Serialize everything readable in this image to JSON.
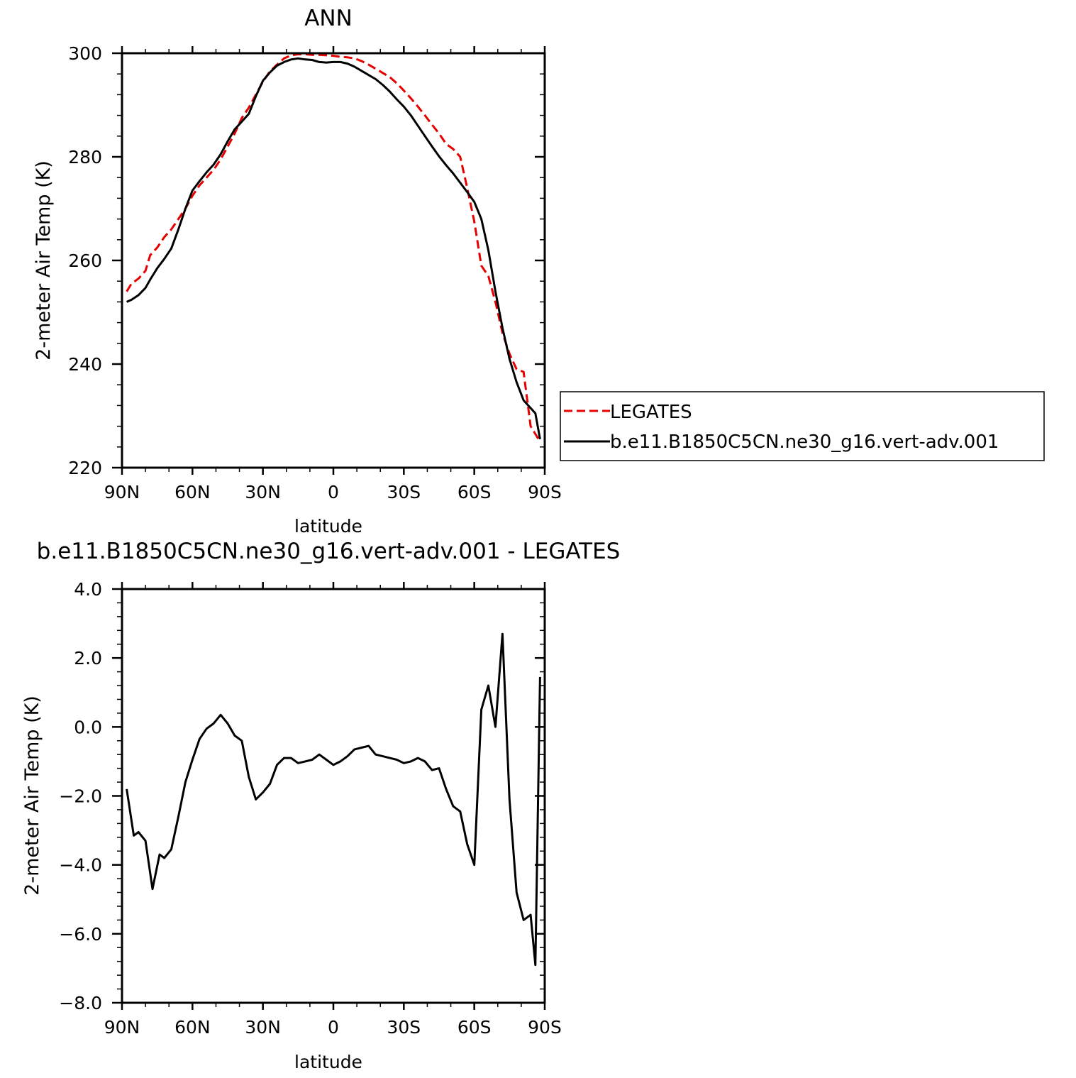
{
  "chart_data": [
    {
      "type": "line",
      "title": "ANN",
      "xlabel": "latitude",
      "ylabel": "2-meter Air Temp (K)",
      "xlim": [
        90,
        -90
      ],
      "ylim": [
        220,
        300
      ],
      "xticks": [
        90,
        60,
        30,
        0,
        -30,
        -60,
        -90
      ],
      "xtick_labels": [
        "90N",
        "60N",
        "30N",
        "0",
        "30S",
        "60S",
        "90S"
      ],
      "yticks": [
        220,
        240,
        260,
        280,
        300
      ],
      "ytick_labels": [
        "220",
        "240",
        "260",
        "280",
        "300"
      ],
      "grid": false,
      "legend": "right",
      "series": [
        {
          "name": "LEGATES",
          "color": "#e60000",
          "dash": "dashed",
          "x": [
            88,
            86,
            83,
            80,
            78,
            75,
            72,
            69,
            66,
            63,
            60,
            57,
            54,
            51,
            48,
            45,
            42,
            39,
            36,
            33,
            30,
            27,
            24,
            21,
            18,
            15,
            12,
            9,
            6,
            3,
            0,
            -3,
            -6,
            -9,
            -12,
            -15,
            -18,
            -21,
            -24,
            -27,
            -30,
            -33,
            -36,
            -39,
            -42,
            -45,
            -48,
            -51,
            -54,
            -57,
            -60,
            -63,
            -66,
            -69,
            -72,
            -75,
            -78,
            -81,
            -84,
            -86,
            -88
          ],
          "y": [
            254,
            255.5,
            256.5,
            258,
            261,
            262.5,
            264.5,
            266,
            268,
            270,
            272.5,
            274.5,
            276,
            277.5,
            279.5,
            282,
            284.5,
            287.5,
            289.5,
            292,
            294.5,
            296.5,
            297.8,
            299,
            299.6,
            299.8,
            299.8,
            299.7,
            299.7,
            299.6,
            299.5,
            299.3,
            299.2,
            299,
            298.5,
            297.8,
            297,
            296.2,
            295.4,
            294.2,
            292.8,
            291.3,
            289.7,
            288,
            286.2,
            284.5,
            282.5,
            281.5,
            280,
            274,
            267.5,
            259,
            257,
            252,
            246,
            242,
            239,
            238.5,
            228,
            226.5,
            225
          ]
        },
        {
          "name": "b.e11.B1850C5CN.ne30_g16.vert-adv.001",
          "color": "#000000",
          "dash": "solid",
          "x": [
            88,
            86,
            83,
            80,
            78,
            75,
            72,
            69,
            66,
            63,
            60,
            57,
            54,
            51,
            48,
            45,
            42,
            39,
            36,
            33,
            30,
            27,
            24,
            21,
            18,
            15,
            12,
            9,
            6,
            3,
            0,
            -3,
            -6,
            -9,
            -12,
            -15,
            -18,
            -21,
            -24,
            -27,
            -30,
            -33,
            -36,
            -39,
            -42,
            -45,
            -48,
            -51,
            -54,
            -57,
            -60,
            -63,
            -66,
            -69,
            -72,
            -75,
            -78,
            -81,
            -84,
            -86,
            -88
          ],
          "y": [
            252,
            252.4,
            253.3,
            254.7,
            256.3,
            258.5,
            260.3,
            262.3,
            266,
            270,
            273.5,
            275.3,
            277,
            278.5,
            280.5,
            283,
            285.3,
            286.8,
            288.3,
            291.7,
            294.7,
            296.3,
            297.6,
            298.3,
            298.8,
            299,
            298.8,
            298.7,
            298.3,
            298.2,
            298.3,
            298.3,
            298,
            297.4,
            296.6,
            295.8,
            295,
            293.9,
            292.6,
            291.1,
            289.7,
            288,
            286,
            284,
            282,
            280.1,
            278.4,
            276.8,
            275,
            273.2,
            271.3,
            268,
            262,
            254,
            247,
            241,
            236.5,
            233,
            231.5,
            230.5,
            225.5
          ]
        }
      ]
    },
    {
      "type": "line",
      "title": "b.e11.B1850C5CN.ne30_g16.vert-adv.001 - LEGATES",
      "xlabel": "latitude",
      "ylabel": "2-meter Air Temp (K)",
      "xlim": [
        90,
        -90
      ],
      "ylim": [
        -8,
        4
      ],
      "xticks": [
        90,
        60,
        30,
        0,
        -30,
        -60,
        -90
      ],
      "xtick_labels": [
        "90N",
        "60N",
        "30N",
        "0",
        "30S",
        "60S",
        "90S"
      ],
      "yticks": [
        -8,
        -6,
        -4,
        -2,
        0,
        2,
        4
      ],
      "ytick_labels": [
        "−8.0",
        "−6.0",
        "−4.0",
        "−2.0",
        "0.0",
        "2.0",
        "4.0"
      ],
      "grid": false,
      "series": [
        {
          "color": "#000000",
          "dash": "solid",
          "x": [
            88,
            85,
            83,
            80,
            77,
            74,
            72,
            69,
            66,
            63,
            60,
            57,
            54,
            51,
            48,
            45,
            42,
            39,
            36,
            33,
            30,
            27,
            24,
            21,
            18,
            15,
            12,
            9,
            6,
            3,
            0,
            -3,
            -6,
            -9,
            -12,
            -15,
            -18,
            -21,
            -24,
            -27,
            -30,
            -33,
            -36,
            -39,
            -42,
            -45,
            -48,
            -51,
            -54,
            -57,
            -60,
            -63,
            -66,
            -69,
            -72,
            -75,
            -78,
            -81,
            -84,
            -86,
            -88
          ],
          "y": [
            -1.8,
            -3.15,
            -3.05,
            -3.3,
            -4.7,
            -3.7,
            -3.8,
            -3.55,
            -2.6,
            -1.6,
            -0.95,
            -0.35,
            -0.05,
            0.1,
            0.35,
            0.1,
            -0.25,
            -0.4,
            -1.45,
            -2.1,
            -1.9,
            -1.65,
            -1.1,
            -0.9,
            -0.9,
            -1.05,
            -1.0,
            -0.95,
            -0.8,
            -0.95,
            -1.1,
            -1.0,
            -0.85,
            -0.65,
            -0.6,
            -0.55,
            -0.8,
            -0.85,
            -0.9,
            -0.95,
            -1.05,
            -1.0,
            -0.9,
            -1.0,
            -1.25,
            -1.2,
            -1.8,
            -2.3,
            -2.45,
            -3.4,
            -4.0,
            0.5,
            1.2,
            0.0,
            2.7,
            -2.1,
            -4.8,
            -5.6,
            -5.45,
            -6.9,
            1.45
          ]
        }
      ]
    }
  ]
}
